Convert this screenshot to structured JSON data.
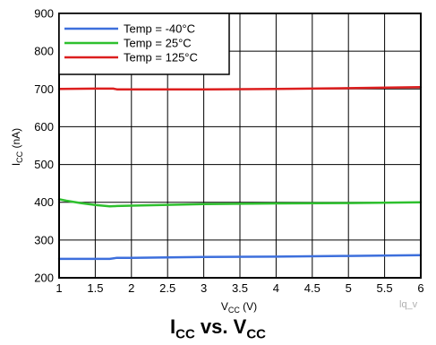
{
  "chart_data": {
    "type": "line",
    "title": "",
    "caption": {
      "a": "I",
      "a_sub": "CC",
      "mid": " vs. ",
      "b": "V",
      "b_sub": "CC"
    },
    "xlabel": {
      "main": "V",
      "sub": "CC",
      "rest": " (V)"
    },
    "ylabel": {
      "main": "I",
      "sub": "CC",
      "rest": " (nA)"
    },
    "xlim": [
      1,
      6
    ],
    "ylim": [
      200,
      900
    ],
    "xticks": [
      1,
      1.5,
      2,
      2.5,
      3,
      3.5,
      4,
      4.5,
      5,
      5.5,
      6
    ],
    "xtick_labels": [
      "1",
      "1.5",
      "2",
      "2.5",
      "3",
      "3.5",
      "4",
      "4.5",
      "5",
      "5.5",
      "6"
    ],
    "yticks": [
      200,
      300,
      400,
      500,
      600,
      700,
      800,
      900
    ],
    "ytick_labels": [
      "200",
      "300",
      "400",
      "500",
      "600",
      "700",
      "800",
      "900"
    ],
    "grid": true,
    "legend": "top-left",
    "watermark": "lq_v",
    "series": [
      {
        "name": "Temp = -40°C",
        "color": "#3d6fdc",
        "x": [
          1,
          1.5,
          1.7,
          1.8,
          2,
          3,
          4,
          5,
          6
        ],
        "y": [
          250,
          250,
          250,
          253,
          253,
          255,
          256,
          258,
          260
        ]
      },
      {
        "name": "Temp = 25°C",
        "color": "#2ec02e",
        "x": [
          1,
          1.1,
          1.3,
          1.5,
          1.7,
          1.8,
          2,
          3,
          4,
          5,
          6
        ],
        "y": [
          408,
          404,
          398,
          393,
          389,
          390,
          391,
          395,
          397,
          398,
          400
        ]
      },
      {
        "name": "Temp = 125°C",
        "color": "#dc1e1e",
        "x": [
          1,
          1.5,
          1.75,
          1.8,
          2,
          3,
          4,
          5,
          6
        ],
        "y": [
          700,
          701,
          701,
          699,
          699,
          699,
          700,
          702,
          705
        ]
      }
    ]
  }
}
